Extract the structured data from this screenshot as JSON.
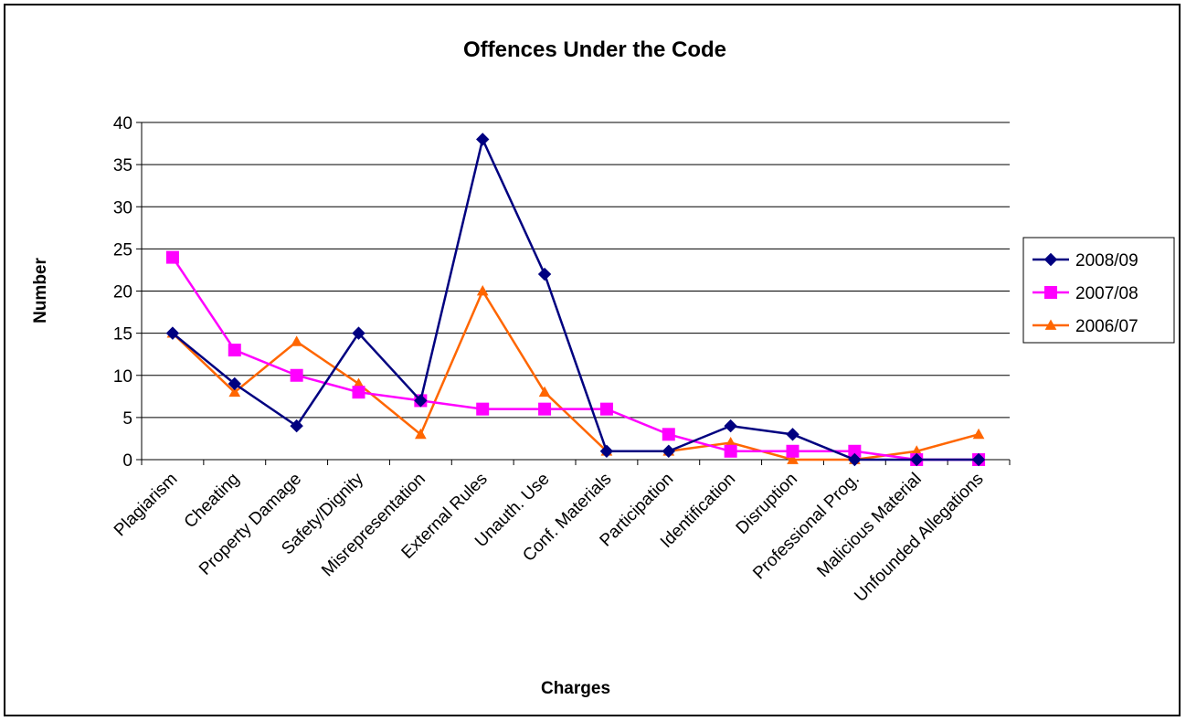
{
  "chart_data": {
    "type": "line",
    "title": "Offences Under the Code",
    "xlabel": "Charges",
    "ylabel": "Number",
    "ylim": [
      0,
      40
    ],
    "yticks": [
      0,
      5,
      10,
      15,
      20,
      25,
      30,
      35,
      40
    ],
    "grid": true,
    "legend_position": "right",
    "categories": [
      "Plagiarism",
      "Cheating",
      "Property Damage",
      "Safety/Dignity",
      "Misrepresentation",
      "External Rules",
      "Unauth. Use",
      "Conf. Materials",
      "Participation",
      "Identification",
      "Disruption",
      "Professional Prog.",
      "Malicious Material",
      "Unfounded Allegations"
    ],
    "series": [
      {
        "name": "2008/09",
        "color": "#000080",
        "marker": "diamond",
        "values": [
          15,
          9,
          4,
          15,
          7,
          38,
          22,
          1,
          1,
          4,
          3,
          0,
          0,
          0
        ]
      },
      {
        "name": "2007/08",
        "color": "#FF00FF",
        "marker": "square",
        "values": [
          24,
          13,
          10,
          8,
          7,
          6,
          6,
          6,
          3,
          1,
          1,
          1,
          0,
          0
        ]
      },
      {
        "name": "2006/07",
        "color": "#FF6600",
        "marker": "triangle",
        "values": [
          15,
          8,
          14,
          9,
          3,
          20,
          8,
          1,
          1,
          2,
          0,
          0,
          1,
          3
        ]
      }
    ]
  }
}
